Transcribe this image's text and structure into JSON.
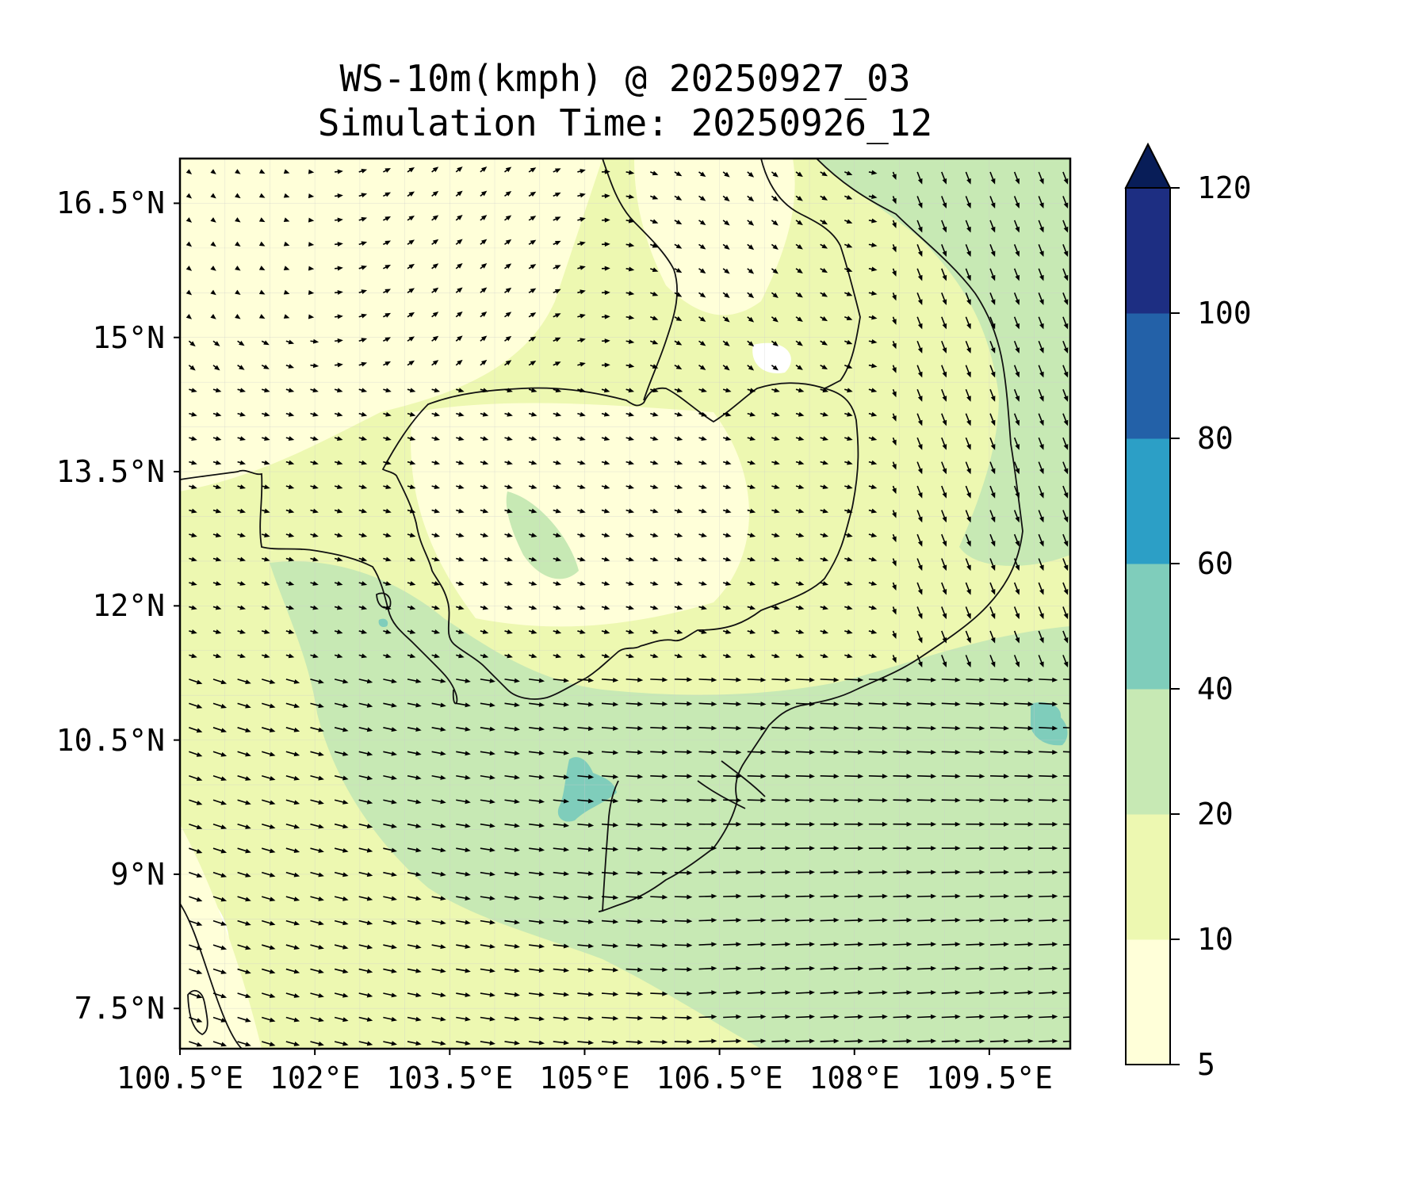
{
  "title": {
    "line1": "WS-10m(kmph) @ 20250927_03",
    "line2": "Simulation Time: 20250926_12"
  },
  "map": {
    "lon_range": [
      100.5,
      110.4
    ],
    "lat_range": [
      7.05,
      17.0
    ],
    "lat_ticks": [
      {
        "value": 16.5,
        "label": "16.5°N"
      },
      {
        "value": 15.0,
        "label": "15°N"
      },
      {
        "value": 13.5,
        "label": "13.5°N"
      },
      {
        "value": 12.0,
        "label": "12°N"
      },
      {
        "value": 10.5,
        "label": "10.5°N"
      },
      {
        "value": 9.0,
        "label": "9°N"
      },
      {
        "value": 7.5,
        "label": "7.5°N"
      }
    ],
    "lon_ticks": [
      {
        "value": 100.5,
        "label": "100.5°E"
      },
      {
        "value": 102.0,
        "label": "102°E"
      },
      {
        "value": 103.5,
        "label": "103.5°E"
      },
      {
        "value": 105.0,
        "label": "105°E"
      },
      {
        "value": 106.5,
        "label": "106.5°E"
      },
      {
        "value": 108.0,
        "label": "108°E"
      },
      {
        "value": 109.5,
        "label": "109.5°E"
      }
    ],
    "wind_field": "quiver arrows of 10 m wind; strong westerly/north-westerly over Gulf of Thailand and South China Sea",
    "colors": {
      "frame": "#000000",
      "coast": "#111111",
      "gridline": "#cccccc"
    }
  },
  "colorbar": {
    "levels": [
      {
        "from": 5,
        "to": 10,
        "color": "#ffffd9"
      },
      {
        "from": 10,
        "to": 20,
        "color": "#edf8b1"
      },
      {
        "from": 20,
        "to": 40,
        "color": "#c7e9b4"
      },
      {
        "from": 40,
        "to": 60,
        "color": "#7fcdbb"
      },
      {
        "from": 60,
        "to": 80,
        "color": "#2c9fc6"
      },
      {
        "from": 80,
        "to": 100,
        "color": "#2361a8"
      },
      {
        "from": 100,
        "to": 120,
        "color": "#1d2e82"
      }
    ],
    "extend_color": "#081d58",
    "tick_labels": [
      "5",
      "10",
      "20",
      "40",
      "60",
      "80",
      "100",
      "120"
    ]
  }
}
